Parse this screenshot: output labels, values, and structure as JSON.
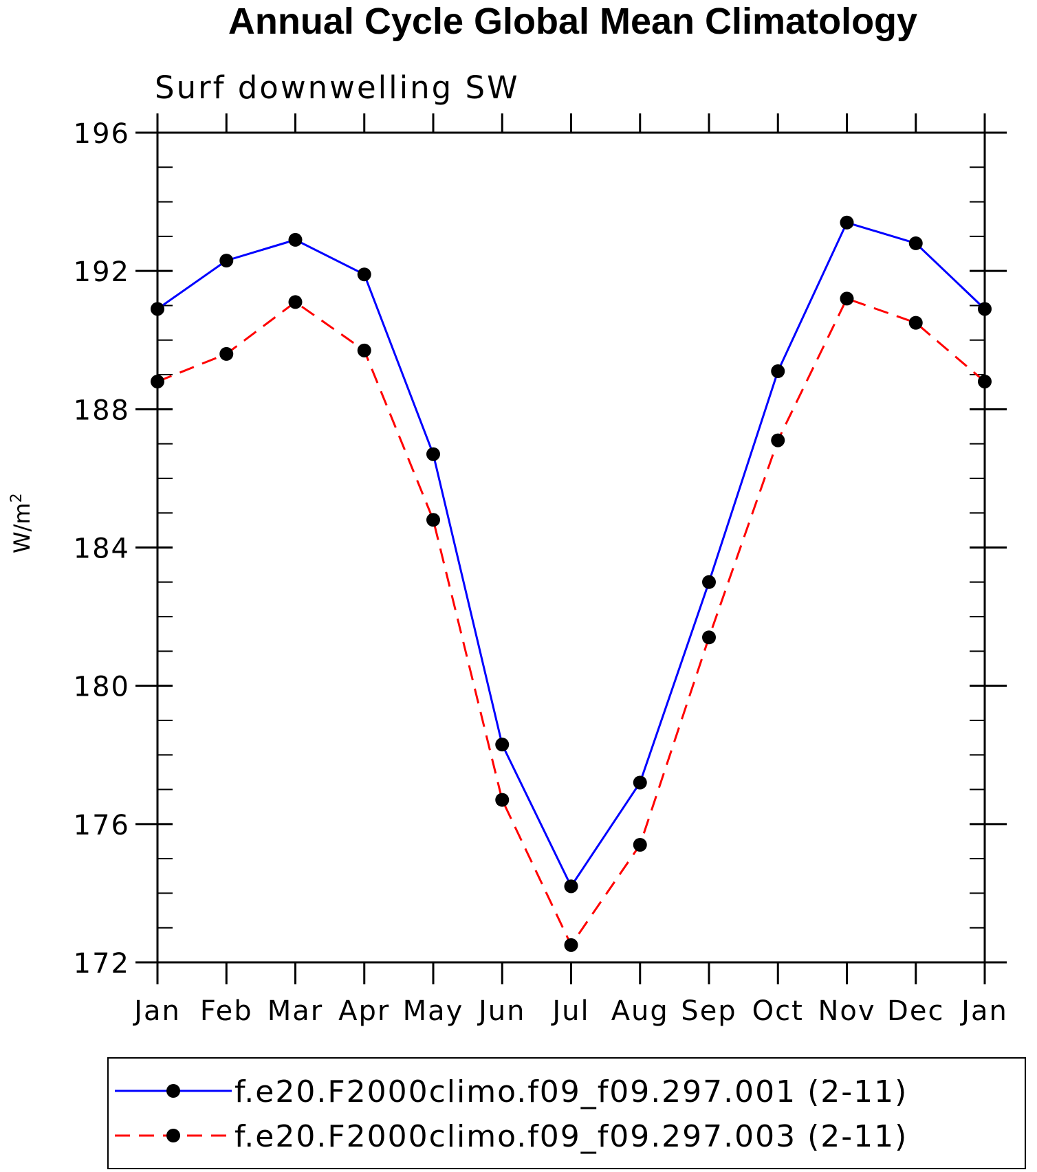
{
  "chart_data": {
    "type": "line",
    "title": "Annual Cycle Global Mean Climatology",
    "subtitle": "Surf downwelling SW",
    "ylabel_base": "W/m",
    "ylabel_exp": "2",
    "xlabel": "",
    "categories": [
      "Jan",
      "Feb",
      "Mar",
      "Apr",
      "May",
      "Jun",
      "Jul",
      "Aug",
      "Sep",
      "Oct",
      "Nov",
      "Dec",
      "Jan"
    ],
    "ylim": [
      172,
      196
    ],
    "yticks": [
      172,
      176,
      180,
      184,
      188,
      192,
      196
    ],
    "yticks_labels": [
      "172",
      "176",
      "180",
      "184",
      "188",
      "192",
      "196"
    ],
    "series": [
      {
        "name": "f.e20.F2000climo.f09_f09.297.001 (2-11)",
        "color": "#0000ff",
        "dash": "solid",
        "values": [
          190.9,
          192.3,
          192.9,
          191.9,
          186.7,
          178.3,
          174.2,
          177.2,
          183.0,
          189.1,
          193.4,
          192.8,
          190.9
        ]
      },
      {
        "name": "f.e20.F2000climo.f09_f09.297.003 (2-11)",
        "color": "#ff0000",
        "dash": "dashed",
        "values": [
          188.8,
          189.6,
          191.1,
          189.7,
          184.8,
          176.7,
          172.5,
          175.4,
          181.4,
          187.1,
          191.2,
          190.5,
          188.8
        ]
      }
    ],
    "marker_color": "#000000",
    "legend_position": "bottom"
  }
}
